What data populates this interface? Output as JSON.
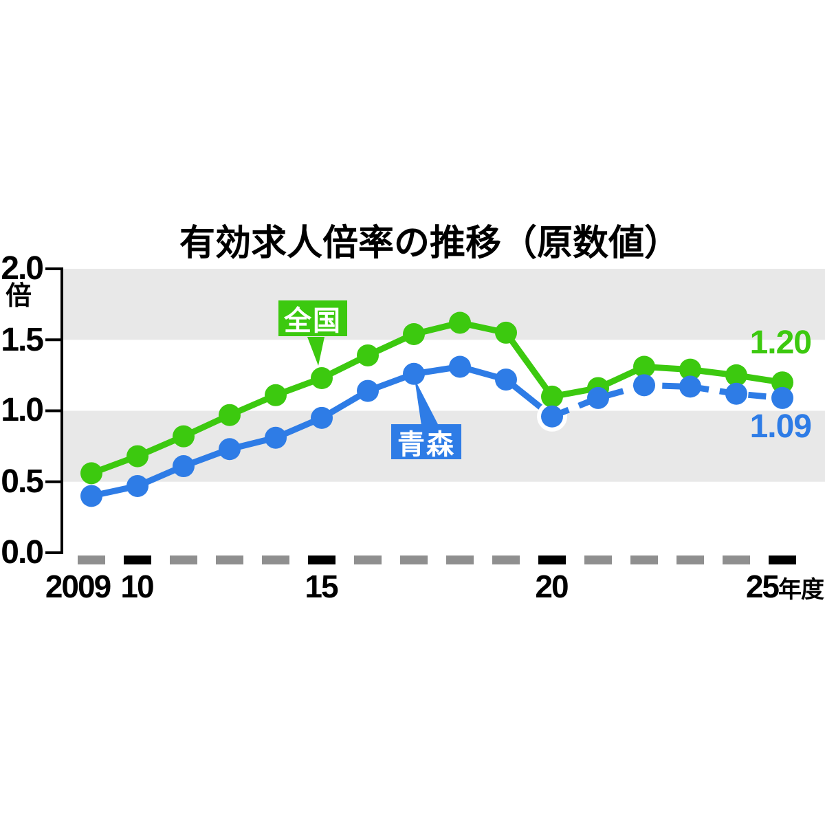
{
  "chart_data": {
    "type": "line",
    "title": "有効求人倍率の推移（原数値）",
    "unit_label": "倍",
    "ylim": [
      0.0,
      2.0
    ],
    "grid": "alternating-horizontal-bands",
    "bands": [
      [
        1.5,
        2.0
      ],
      [
        0.5,
        1.0
      ]
    ],
    "band_color": "#e8e8e8",
    "axis_color": "#000000",
    "x_dash_gray": "#8f8f8f",
    "x_dash_black": "#000000",
    "yticks": [
      {
        "label": "2.0",
        "value": 2.0
      },
      {
        "label": "1.5",
        "value": 1.5
      },
      {
        "label": "1.0",
        "value": 1.0
      },
      {
        "label": "0.5",
        "value": 0.5
      },
      {
        "label": "0.0",
        "value": 0.0
      }
    ],
    "xticks": [
      {
        "label": "2009"
      },
      {
        "label": "10"
      },
      {
        "label": "15"
      },
      {
        "label": "20"
      },
      {
        "label": "25年度",
        "num": "25",
        "suffix": "年度"
      }
    ],
    "categories": [
      2010,
      2011,
      2012,
      2013,
      2014,
      2015,
      2016,
      2017,
      2018,
      2019,
      2020,
      2021,
      2022,
      2023,
      2024,
      2025
    ],
    "emphasized_tick_point_indices": [
      1,
      5,
      10,
      15
    ],
    "series": [
      {
        "name": "全国",
        "color": "#3cc90f",
        "line_style": "solid",
        "values": [
          0.56,
          0.68,
          0.82,
          0.97,
          1.11,
          1.23,
          1.39,
          1.54,
          1.62,
          1.55,
          1.1,
          1.16,
          1.31,
          1.29,
          1.25,
          1.2
        ],
        "end_label": "1.20"
      },
      {
        "name": "青森",
        "color": "#2e7ce6",
        "line_style": "solid",
        "dashed_from_index": 10,
        "halo_point_index": 10,
        "values": [
          0.4,
          0.47,
          0.61,
          0.73,
          0.81,
          0.95,
          1.14,
          1.26,
          1.31,
          1.22,
          0.96,
          1.09,
          1.18,
          1.17,
          1.12,
          1.09
        ],
        "end_label": "1.09"
      }
    ]
  }
}
